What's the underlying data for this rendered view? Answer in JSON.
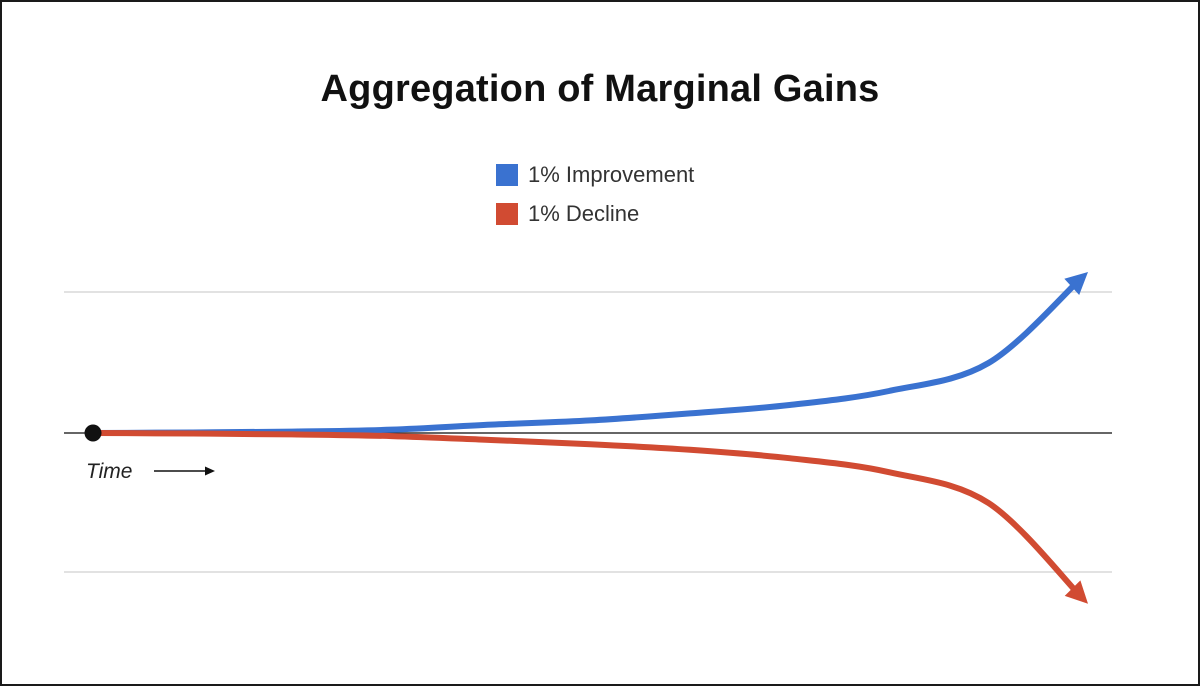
{
  "chart_data": {
    "type": "line",
    "title": "Aggregation of Marginal Gains",
    "xlabel": "Time",
    "ylabel": "",
    "x": [
      0,
      10,
      20,
      30,
      40,
      50,
      60,
      70,
      80,
      90,
      100
    ],
    "series": [
      {
        "name": "1% Improvement",
        "color": "#3a72d0",
        "values": [
          0,
          0.004,
          0.01,
          0.024,
          0.06,
          0.09,
          0.14,
          0.2,
          0.3,
          0.5,
          1.15
        ]
      },
      {
        "name": "1% Decline",
        "color": "#d14b32",
        "values": [
          0,
          -0.004,
          -0.01,
          -0.022,
          -0.05,
          -0.08,
          -0.12,
          -0.18,
          -0.28,
          -0.5,
          -1.22
        ]
      }
    ],
    "ylim": [
      -1,
      1
    ],
    "grid": true,
    "legend_position": "top-center"
  }
}
